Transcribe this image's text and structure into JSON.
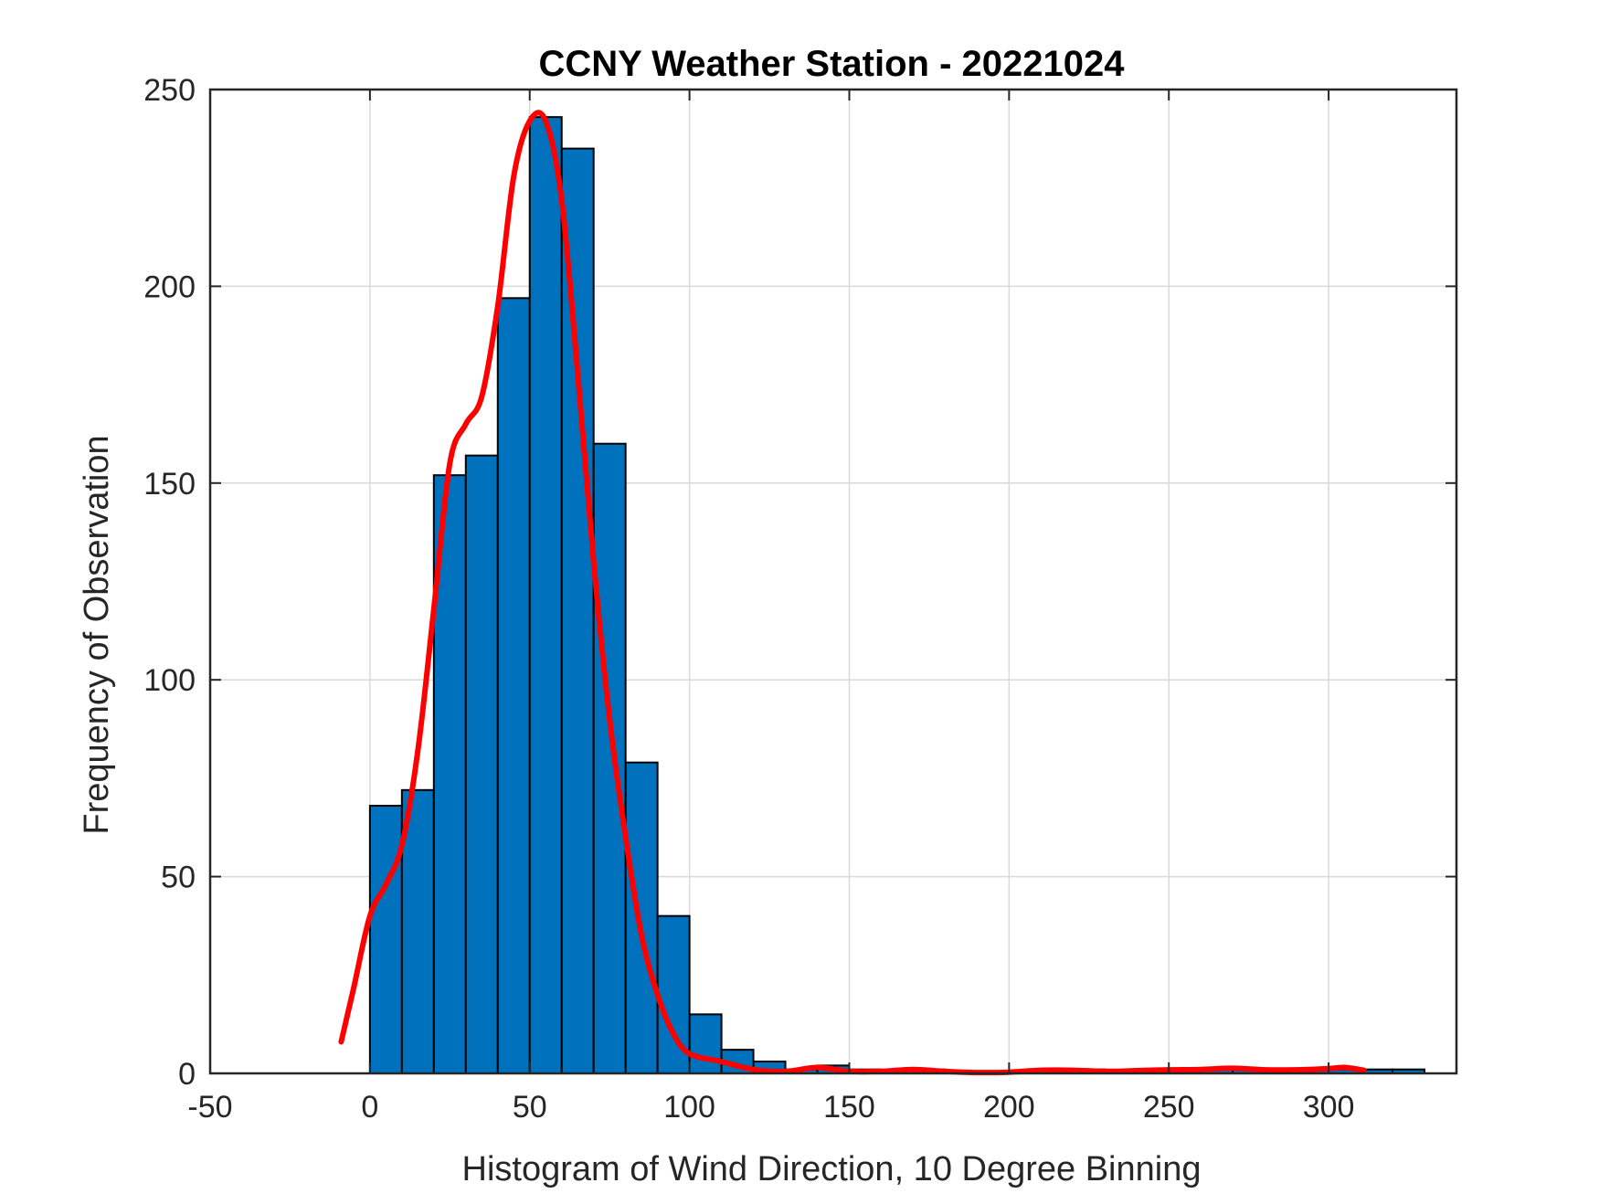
{
  "chart_data": {
    "type": "bar",
    "title": "CCNY Weather Station - 20221024",
    "xlabel": "Histogram of Wind Direction, 10 Degree Binning",
    "ylabel": "Frequency of Observation",
    "xlim": [
      -50,
      340
    ],
    "ylim": [
      0,
      250
    ],
    "xticks": [
      -50,
      0,
      50,
      100,
      150,
      200,
      250,
      300
    ],
    "yticks": [
      0,
      50,
      100,
      150,
      200,
      250
    ],
    "grid": true,
    "bin_width": 10,
    "bins": [
      {
        "start": 0,
        "value": 68
      },
      {
        "start": 10,
        "value": 72
      },
      {
        "start": 20,
        "value": 152
      },
      {
        "start": 30,
        "value": 157
      },
      {
        "start": 40,
        "value": 197
      },
      {
        "start": 50,
        "value": 243
      },
      {
        "start": 60,
        "value": 235
      },
      {
        "start": 70,
        "value": 160
      },
      {
        "start": 80,
        "value": 79
      },
      {
        "start": 90,
        "value": 40
      },
      {
        "start": 100,
        "value": 15
      },
      {
        "start": 110,
        "value": 6
      },
      {
        "start": 120,
        "value": 3
      },
      {
        "start": 130,
        "value": 1
      },
      {
        "start": 140,
        "value": 2
      },
      {
        "start": 150,
        "value": 1
      },
      {
        "start": 160,
        "value": 0
      },
      {
        "start": 170,
        "value": 1
      },
      {
        "start": 180,
        "value": 0
      },
      {
        "start": 190,
        "value": 0
      },
      {
        "start": 200,
        "value": 0
      },
      {
        "start": 210,
        "value": 1
      },
      {
        "start": 220,
        "value": 1
      },
      {
        "start": 230,
        "value": 0
      },
      {
        "start": 240,
        "value": 1
      },
      {
        "start": 250,
        "value": 1
      },
      {
        "start": 260,
        "value": 1
      },
      {
        "start": 270,
        "value": 1
      },
      {
        "start": 280,
        "value": 1
      },
      {
        "start": 290,
        "value": 1
      },
      {
        "start": 300,
        "value": 1
      },
      {
        "start": 310,
        "value": 1
      },
      {
        "start": 320,
        "value": 1
      }
    ],
    "fit_curve": {
      "x": [
        -9,
        -5,
        0,
        5,
        10,
        15,
        20,
        25,
        30,
        35,
        40,
        45,
        50,
        55,
        60,
        65,
        70,
        75,
        80,
        85,
        90,
        95,
        100,
        110,
        120,
        130,
        140,
        150,
        160,
        170,
        180,
        190,
        200,
        210,
        220,
        230,
        240,
        250,
        260,
        270,
        280,
        290,
        300,
        305,
        311
      ],
      "y": [
        8,
        22,
        40,
        48,
        58,
        82,
        118,
        155,
        165,
        172,
        195,
        228,
        242,
        242,
        222,
        178,
        130,
        90,
        60,
        35,
        20,
        10,
        5,
        3,
        1,
        0.5,
        1.5,
        0.5,
        0.5,
        1,
        0.5,
        0.2,
        0.3,
        0.8,
        0.8,
        0.5,
        0.7,
        0.9,
        1,
        1.3,
        0.9,
        0.9,
        1.2,
        1.5,
        0.8
      ]
    },
    "colors": {
      "bar_fill": "#0072BD",
      "bar_edge": "#000000",
      "curve": "#FF0000",
      "grid": "#D9D9D9",
      "axis": "#262626"
    }
  }
}
